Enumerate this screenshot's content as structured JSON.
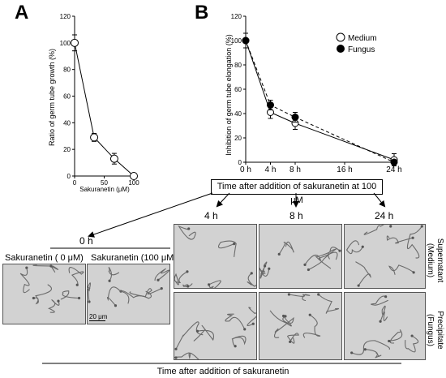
{
  "panel_a": {
    "letter": "A",
    "chart": {
      "type": "line",
      "xlabel": "Sakuranetin (μM)",
      "ylabel": "Ratio of germ tube growth (%)",
      "xlim": [
        0,
        100
      ],
      "ylim": [
        0,
        120
      ],
      "x_ticks": [
        "0",
        "50",
        "100"
      ],
      "y_ticks": [
        "0",
        "20",
        "40",
        "60",
        "80",
        "100",
        "120"
      ],
      "series": [
        {
          "x": [
            0,
            33,
            67,
            100
          ],
          "y": [
            100,
            29,
            13,
            0
          ],
          "err": [
            6,
            3,
            4,
            1
          ]
        }
      ]
    }
  },
  "panel_b": {
    "letter": "B",
    "chart": {
      "type": "line",
      "ylabel": "Inhibition of germ tube elongation (%)",
      "xlim": [
        0,
        24
      ],
      "ylim": [
        0,
        120
      ],
      "x_ticks": [
        "0 h",
        "4 h",
        "8 h",
        "16 h",
        "24 h"
      ],
      "x_tick_values": [
        0,
        4,
        8,
        16,
        24
      ],
      "y_ticks": [
        "0",
        "20",
        "40",
        "60",
        "80",
        "100",
        "120"
      ],
      "legend_position": "top-right",
      "series": [
        {
          "name": "Medium",
          "x": [
            0,
            4,
            8,
            24
          ],
          "y": [
            100,
            41,
            32,
            2
          ],
          "err": [
            6,
            5,
            5,
            5
          ]
        },
        {
          "name": "Fungus",
          "x": [
            0,
            4,
            8,
            24
          ],
          "y": [
            100,
            47,
            37,
            0
          ],
          "err": [
            6,
            4,
            4,
            2
          ]
        }
      ]
    },
    "time_box": "Time after addition of sakuranetin at 100 μM"
  },
  "micrographs": {
    "zero_header": "0 h",
    "left_label": "Sakuranetin  ( 0 μM)",
    "right_label": "Sakuranetin  (100 μM)",
    "scale_bar": "20 μm",
    "col_headers": [
      "4 h",
      "8 h",
      "24 h"
    ],
    "row_labels": [
      "Supernatant\n(Medium)",
      "Precipitate\n(Fungus)"
    ],
    "bottom_caption": "Time after addition of sakuranetin"
  }
}
